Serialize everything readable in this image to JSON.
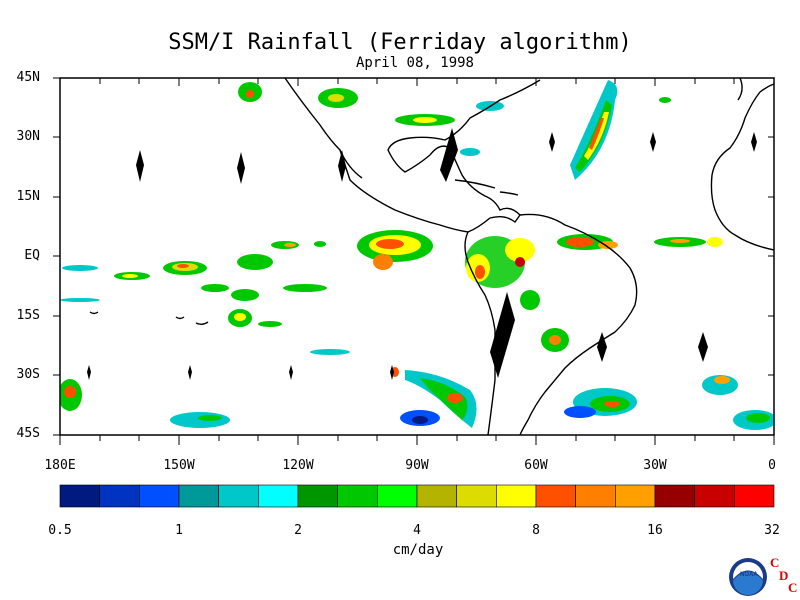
{
  "title": "SSM/I Rainfall (Ferriday algorithm)",
  "subtitle": "April 08, 1998",
  "lat_labels": [
    "45N",
    "30N",
    "15N",
    "EQ",
    "15S",
    "30S",
    "45S"
  ],
  "lon_labels": [
    "180E",
    "150W",
    "120W",
    "90W",
    "60W",
    "30W",
    "0"
  ],
  "colorbar": {
    "colors": [
      "#001a80",
      "#0033c0",
      "#0050ff",
      "#009999",
      "#00c8c8",
      "#00ffff",
      "#009600",
      "#00c800",
      "#00ff00",
      "#b4b400",
      "#dcdc00",
      "#ffff00",
      "#ff5000",
      "#ff8000",
      "#ffa000",
      "#960000",
      "#c80000",
      "#ff0000"
    ],
    "tick_labels": [
      "0.5",
      "1",
      "2",
      "4",
      "8",
      "16",
      "32"
    ],
    "unit": "cm/day"
  },
  "logo": {
    "badge_text": "NOAA",
    "letters": [
      "C",
      "D",
      "C"
    ]
  }
}
